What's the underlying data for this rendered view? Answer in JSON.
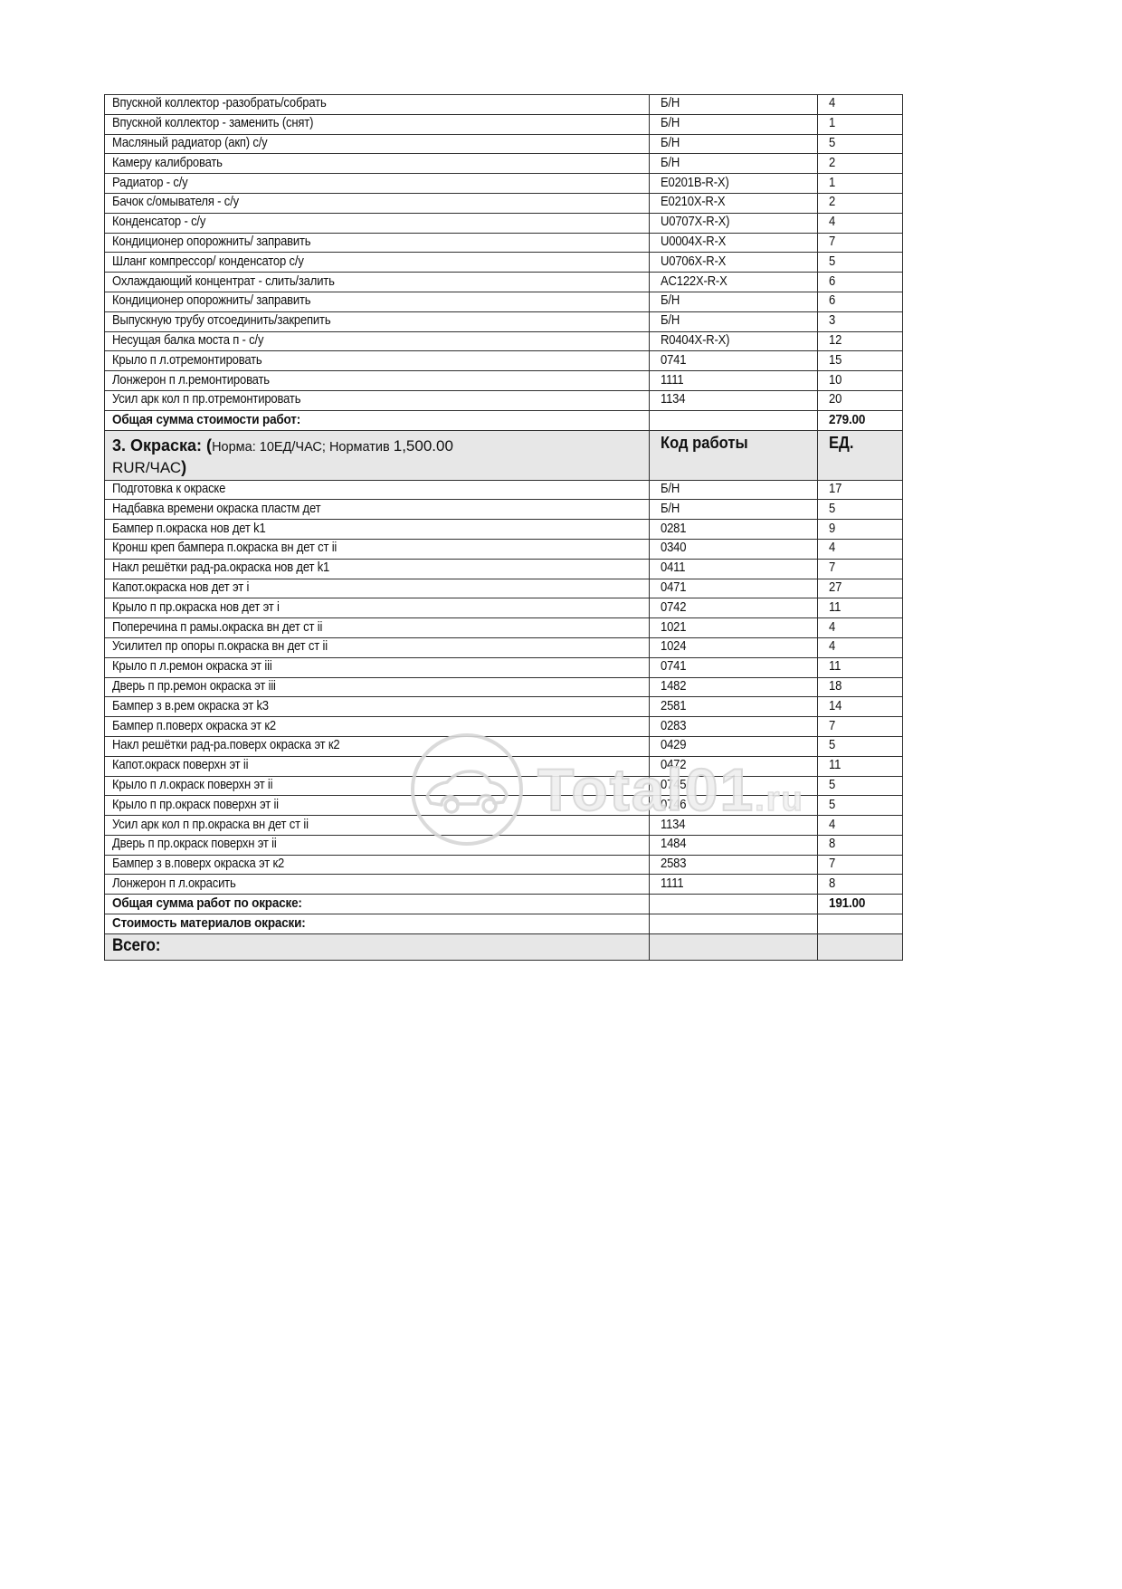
{
  "watermark": {
    "text": "Total01",
    "suffix": ".ru"
  },
  "table": {
    "section1": {
      "rows": [
        {
          "desc": "Впускной коллектор  -разобрать/собрать",
          "code": "Б/Н",
          "units": "4"
        },
        {
          "desc": "Впускной коллектор - заменить  (снят)",
          "code": "Б/Н",
          "units": "1"
        },
        {
          "desc": "Масляный радиатор (акп) с/у",
          "code": "Б/Н",
          "units": "5"
        },
        {
          "desc": "Камеру калибровать",
          "code": "Б/Н",
          "units": "2"
        },
        {
          "desc": "Радиатор - с/у",
          "code": "E0201B-R-X)",
          "units": "1"
        },
        {
          "desc": "Бачок с/омывателя - с/у",
          "code": "E0210X-R-X",
          "units": "2"
        },
        {
          "desc": "Конденсатор - с/у",
          "code": "U0707X-R-X)",
          "units": "4"
        },
        {
          "desc": "Кондиционер опорожнить/ заправить",
          "code": "U0004X-R-X",
          "units": "7"
        },
        {
          "desc": "Шланг компрессор/ конденсатор с/у",
          "code": "U0706X-R-X",
          "units": "5"
        },
        {
          "desc": "Охлаждающий концентрат - слить/залить",
          "code": "AC122X-R-X",
          "units": "6"
        },
        {
          "desc": "Кондиционер опорожнить/ заправить",
          "code": "Б/Н",
          "units": "6"
        },
        {
          "desc": "Выпускную трубу отсоединить/закрепить",
          "code": "Б/Н",
          "units": "3"
        },
        {
          "desc": "Несущая балка моста п - с/у",
          "code": "R0404X-R-X)",
          "units": "12"
        },
        {
          "desc": "Крыло п л.отремонтировать",
          "code": "0741",
          "units": "15"
        },
        {
          "desc": "Лонжерон п л.ремонтировать",
          "code": "1111",
          "units": "10"
        },
        {
          "desc": "Усил арк кол п пр.отремонтировать",
          "code": "1134",
          "units": "20"
        }
      ],
      "total_label": "Общая сумма стоимости работ:",
      "total_value": "279.00"
    },
    "section2_header": {
      "title_bold_prefix": "3. Окраска: (",
      "title_normal": "Норма: 10ЕД/ЧАС; Норматив ",
      "title_amount": "1,500.00",
      "title_line2": "RUR/ЧАС",
      "title_bold_suffix": ")",
      "col_code": "Код работы",
      "col_units": "ЕД."
    },
    "section2": {
      "rows": [
        {
          "desc": "Подготовка к окраске",
          "code": "Б/Н",
          "units": "17"
        },
        {
          "desc": "Надбавка времени окраска пластм дет",
          "code": "Б/Н",
          "units": "5"
        },
        {
          "desc": "Бампер п.окраска нов дет k1",
          "code": "0281",
          "units": "9"
        },
        {
          "desc": "Кронш креп бампера п.окраска вн дет ст ii",
          "code": "0340",
          "units": "4"
        },
        {
          "desc": "Накл решётки рад-ра.окраска нов дет k1",
          "code": "0411",
          "units": "7"
        },
        {
          "desc": "Капот.окраска нов дет эт i",
          "code": "0471",
          "units": "27"
        },
        {
          "desc": "Крыло п пр.окраска нов дет эт i",
          "code": "0742",
          "units": "11"
        },
        {
          "desc": "Поперечина п рамы.окраска вн дет ст ii",
          "code": "1021",
          "units": "4"
        },
        {
          "desc": "Усилител пр опоры  п.окраска вн дет ст ii",
          "code": "1024",
          "units": "4"
        },
        {
          "desc": "Крыло п л.ремон окраска эт iii",
          "code": "0741",
          "units": "11"
        },
        {
          "desc": "Дверь п пр.ремон окраска эт iii",
          "code": "1482",
          "units": "18"
        },
        {
          "desc": "Бампер з в.рем окраска эт k3",
          "code": "2581",
          "units": "14"
        },
        {
          "desc": "Бампер п.поверх окраска эт к2",
          "code": "0283",
          "units": "7"
        },
        {
          "desc": "Накл решётки рад-ра.поверх окраска эт к2",
          "code": "0429",
          "units": "5"
        },
        {
          "desc": "Капот.окраск поверхн эт ii",
          "code": "0472",
          "units": "11"
        },
        {
          "desc": "Крыло п л.окраск поверхн эт ii",
          "code": "0745",
          "units": "5"
        },
        {
          "desc": "Крыло п пр.окраск поверхн эт ii",
          "code": "0746",
          "units": "5"
        },
        {
          "desc": "Усил арк кол п пр.окраска вн дет ст ii",
          "code": "1134",
          "units": "4"
        },
        {
          "desc": "Дверь п пр.окраск поверхн эт ii",
          "code": "1484",
          "units": "8"
        },
        {
          "desc": "Бампер з в.поверх окраска эт к2",
          "code": "2583",
          "units": "7"
        },
        {
          "desc": "Лонжерон п л.окрасить",
          "code": "1111",
          "units": "8"
        }
      ],
      "total_label": "Общая сумма работ по окраске:",
      "total_value": "191.00",
      "materials_label": "Стоимость материалов окраски:",
      "grand_total_label": "Всего:"
    }
  }
}
